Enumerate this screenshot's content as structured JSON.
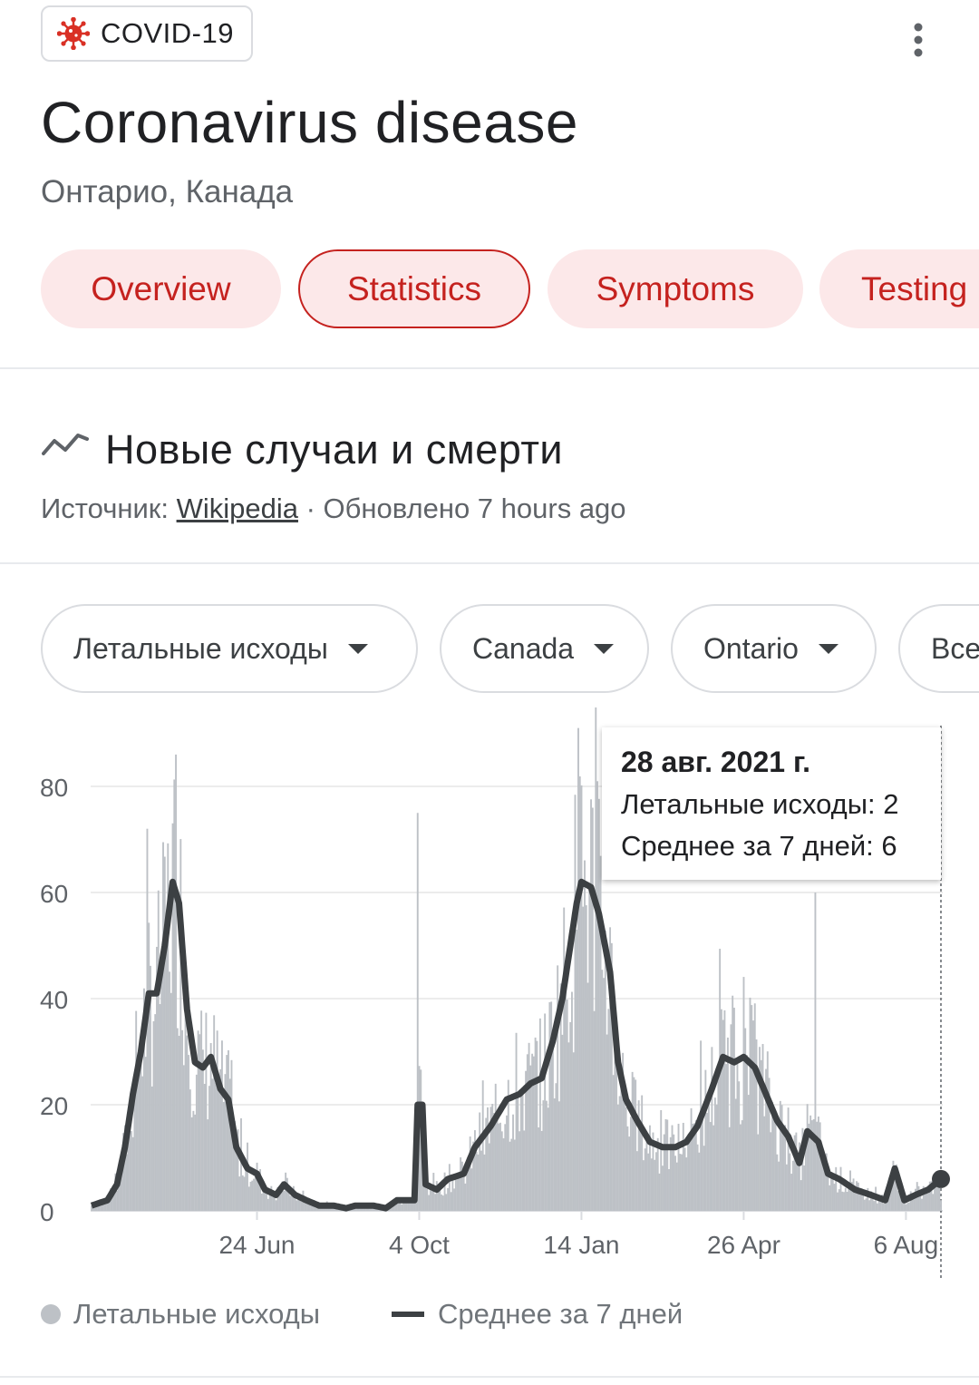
{
  "header": {
    "chip_label": "COVID-19",
    "chip_icon": "virus-icon",
    "chip_icon_color": "#d93025",
    "more_icon": "more-vert-icon",
    "title": "Coronavirus disease",
    "subtitle": "Онтарио, Канада"
  },
  "tabs": [
    {
      "label": "Overview",
      "active": false
    },
    {
      "label": "Statistics",
      "active": true
    },
    {
      "label": "Symptoms",
      "active": false
    },
    {
      "label": "Testing",
      "active": false
    }
  ],
  "section": {
    "icon": "trending-line-icon",
    "title": "Новые случаи и смерти",
    "source_prefix": "Источник: ",
    "source_link": "Wikipedia",
    "source_suffix": " · Обновлено 7 hours ago"
  },
  "filters": [
    {
      "label": "Летальные исходы"
    },
    {
      "label": "Canada"
    },
    {
      "label": "Ontario"
    },
    {
      "label": "Все"
    }
  ],
  "tooltip": {
    "date": "28 авг. 2021 г.",
    "deaths_line": "Летальные исходы: 2",
    "avg_line": "Среднее за 7 дней: 6"
  },
  "legend": {
    "bars_label": "Летальные исходы",
    "line_label": "Среднее за 7 дней"
  },
  "colors": {
    "accent": "#c5221f",
    "tab_bg": "#fce8e9",
    "bar": "#bdc1c6",
    "line": "#3c4043"
  },
  "chart_data": {
    "type": "bar",
    "x_start_date": "2020-03-12",
    "x_end_date": "2021-08-28",
    "x_ticks": [
      {
        "label": "24 Jun",
        "date": "2020-06-24"
      },
      {
        "label": "4 Oct",
        "date": "2020-10-04"
      },
      {
        "label": "14 Jan",
        "date": "2021-01-14"
      },
      {
        "label": "26 Apr",
        "date": "2021-04-26"
      },
      {
        "label": "6 Aug",
        "date": "2021-08-06"
      }
    ],
    "y_ticks": [
      0,
      20,
      40,
      60,
      80
    ],
    "ylim": [
      0,
      90
    ],
    "grid": true,
    "series": [
      {
        "name": "Летальные исходы",
        "kind": "bar",
        "color": "#bdc1c6",
        "description": "daily deaths, approximated from 7-day average shape"
      },
      {
        "name": "Среднее за 7 дней",
        "kind": "line",
        "color": "#3c4043"
      }
    ],
    "avg_keypoints": [
      [
        "2020-03-12",
        1
      ],
      [
        "2020-03-22",
        2
      ],
      [
        "2020-03-28",
        5
      ],
      [
        "2020-04-02",
        12
      ],
      [
        "2020-04-07",
        22
      ],
      [
        "2020-04-12",
        30
      ],
      [
        "2020-04-17",
        41
      ],
      [
        "2020-04-22",
        41
      ],
      [
        "2020-04-27",
        50
      ],
      [
        "2020-05-02",
        62
      ],
      [
        "2020-05-06",
        58
      ],
      [
        "2020-05-11",
        38
      ],
      [
        "2020-05-16",
        28
      ],
      [
        "2020-05-21",
        27
      ],
      [
        "2020-05-26",
        29
      ],
      [
        "2020-06-01",
        23
      ],
      [
        "2020-06-06",
        21
      ],
      [
        "2020-06-11",
        12
      ],
      [
        "2020-06-18",
        8
      ],
      [
        "2020-06-24",
        7
      ],
      [
        "2020-06-29",
        4
      ],
      [
        "2020-07-06",
        3
      ],
      [
        "2020-07-11",
        5
      ],
      [
        "2020-07-18",
        3
      ],
      [
        "2020-07-25",
        2
      ],
      [
        "2020-08-02",
        1
      ],
      [
        "2020-08-11",
        1
      ],
      [
        "2020-08-19",
        0.5
      ],
      [
        "2020-08-25",
        1
      ],
      [
        "2020-09-05",
        1
      ],
      [
        "2020-09-13",
        0.5
      ],
      [
        "2020-09-20",
        2
      ],
      [
        "2020-09-28",
        2
      ],
      [
        "2020-10-01",
        2
      ],
      [
        "2020-10-03",
        20
      ],
      [
        "2020-10-06",
        20
      ],
      [
        "2020-10-08",
        5
      ],
      [
        "2020-10-15",
        4
      ],
      [
        "2020-10-22",
        6
      ],
      [
        "2020-11-01",
        7
      ],
      [
        "2020-11-08",
        12
      ],
      [
        "2020-11-18",
        16
      ],
      [
        "2020-11-28",
        21
      ],
      [
        "2020-12-06",
        22
      ],
      [
        "2020-12-13",
        24
      ],
      [
        "2020-12-20",
        25
      ],
      [
        "2020-12-27",
        32
      ],
      [
        "2021-01-02",
        40
      ],
      [
        "2021-01-07",
        50
      ],
      [
        "2021-01-11",
        58
      ],
      [
        "2021-01-14",
        62
      ],
      [
        "2021-01-20",
        61
      ],
      [
        "2021-01-25",
        56
      ],
      [
        "2021-02-01",
        45
      ],
      [
        "2021-02-06",
        28
      ],
      [
        "2021-02-11",
        21
      ],
      [
        "2021-02-18",
        17
      ],
      [
        "2021-02-26",
        13
      ],
      [
        "2021-03-06",
        12
      ],
      [
        "2021-03-14",
        12
      ],
      [
        "2021-03-21",
        13
      ],
      [
        "2021-03-28",
        16
      ],
      [
        "2021-04-06",
        23
      ],
      [
        "2021-04-13",
        29
      ],
      [
        "2021-04-20",
        28
      ],
      [
        "2021-04-26",
        29
      ],
      [
        "2021-05-03",
        27
      ],
      [
        "2021-05-10",
        22
      ],
      [
        "2021-05-17",
        17
      ],
      [
        "2021-05-24",
        14
      ],
      [
        "2021-05-31",
        9
      ],
      [
        "2021-06-05",
        15
      ],
      [
        "2021-06-12",
        13
      ],
      [
        "2021-06-18",
        7
      ],
      [
        "2021-06-25",
        6
      ],
      [
        "2021-07-05",
        4
      ],
      [
        "2021-07-15",
        3
      ],
      [
        "2021-07-24",
        2
      ],
      [
        "2021-07-30",
        8
      ],
      [
        "2021-08-05",
        2
      ],
      [
        "2021-08-12",
        3
      ],
      [
        "2021-08-20",
        4
      ],
      [
        "2021-08-28",
        6
      ]
    ],
    "highlight": {
      "date": "2021-08-28",
      "deaths": 2,
      "avg": 6
    }
  }
}
